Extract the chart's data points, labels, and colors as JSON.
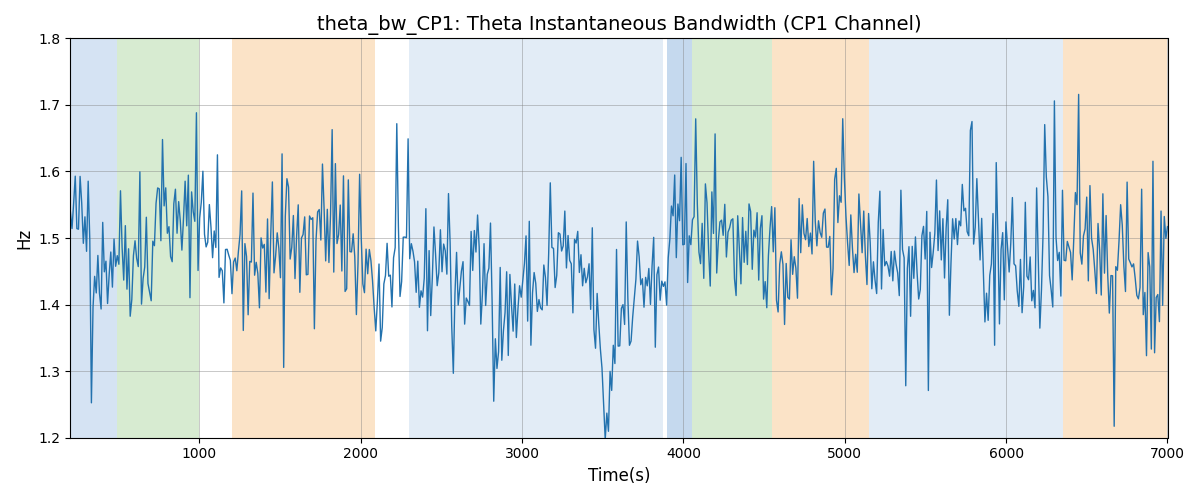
{
  "title": "theta_bw_CP1: Theta Instantaneous Bandwidth (CP1 Channel)",
  "xlabel": "Time(s)",
  "ylabel": "Hz",
  "xlim": [
    200,
    7000
  ],
  "ylim": [
    1.2,
    1.8
  ],
  "xticks": [
    1000,
    2000,
    3000,
    4000,
    5000,
    6000,
    7000
  ],
  "yticks": [
    1.2,
    1.3,
    1.4,
    1.5,
    1.6,
    1.7,
    1.8
  ],
  "seed": 42,
  "n_points": 680,
  "line_color": "#2372ae",
  "line_width": 1.0,
  "background_color": "#ffffff",
  "bands": [
    {
      "start": 200,
      "end": 490,
      "color": "#adc9e8",
      "alpha": 0.5
    },
    {
      "start": 490,
      "end": 1000,
      "color": "#b0d8a4",
      "alpha": 0.5
    },
    {
      "start": 1200,
      "end": 2090,
      "color": "#f9c990",
      "alpha": 0.5
    },
    {
      "start": 2300,
      "end": 3870,
      "color": "#adc9e8",
      "alpha": 0.35
    },
    {
      "start": 3900,
      "end": 4050,
      "color": "#adc9e8",
      "alpha": 0.7
    },
    {
      "start": 4050,
      "end": 4550,
      "color": "#b0d8a4",
      "alpha": 0.5
    },
    {
      "start": 4550,
      "end": 5150,
      "color": "#f9c990",
      "alpha": 0.5
    },
    {
      "start": 5150,
      "end": 6350,
      "color": "#adc9e8",
      "alpha": 0.35
    },
    {
      "start": 6350,
      "end": 7000,
      "color": "#f9c990",
      "alpha": 0.5
    }
  ],
  "title_fontsize": 14,
  "axis_fontsize": 12,
  "tick_fontsize": 10
}
